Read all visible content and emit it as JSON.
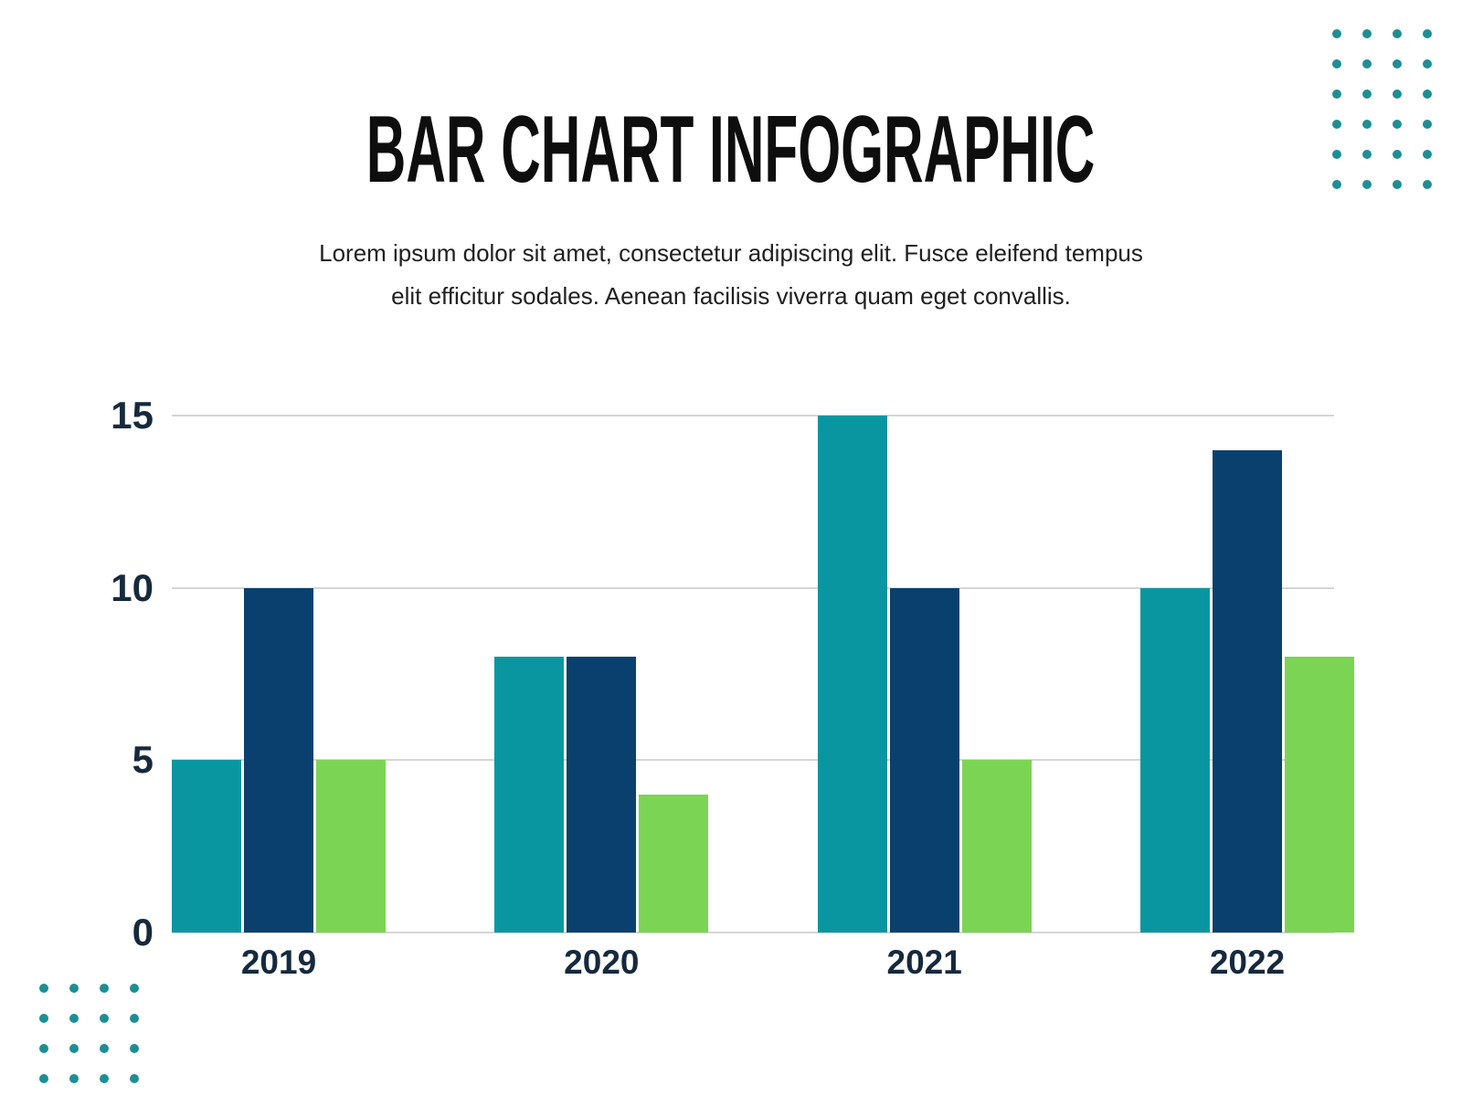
{
  "header": {
    "title": "BAR CHART INFOGRAPHIC",
    "subtitle": "Lorem ipsum dolor sit amet, consectetur adipiscing elit. Fusce eleifend tempus\nelit efficitur sodales. Aenean facilisis viverra quam eget convallis."
  },
  "chart_data": {
    "type": "bar",
    "title": "BAR CHART INFOGRAPHIC",
    "xlabel": "",
    "ylabel": "",
    "categories": [
      "2019",
      "2020",
      "2021",
      "2022"
    ],
    "series": [
      {
        "name": "teal",
        "color": "#0A96A0",
        "values": [
          5,
          8,
          15,
          10
        ]
      },
      {
        "name": "navy",
        "color": "#0A406E",
        "values": [
          10,
          8,
          10,
          14
        ]
      },
      {
        "name": "green",
        "color": "#7CD454",
        "values": [
          5,
          4,
          5,
          8
        ]
      }
    ],
    "ylim": [
      0,
      15
    ],
    "yticks": [
      0,
      5,
      10,
      15
    ],
    "grid": true,
    "legend_position": "none"
  },
  "decor": {
    "dot_color": "#1E8E95",
    "top_right_dots": {
      "rows": 6,
      "cols": 4
    },
    "bottom_left_dots": {
      "rows": 4,
      "cols": 4
    }
  },
  "colors": {
    "page_background": "#FFFFFF",
    "title": "#0E0E0E",
    "subtitle": "#1F1F1F",
    "axis_label": "#16293D",
    "gridline": "#D5D5D5"
  }
}
